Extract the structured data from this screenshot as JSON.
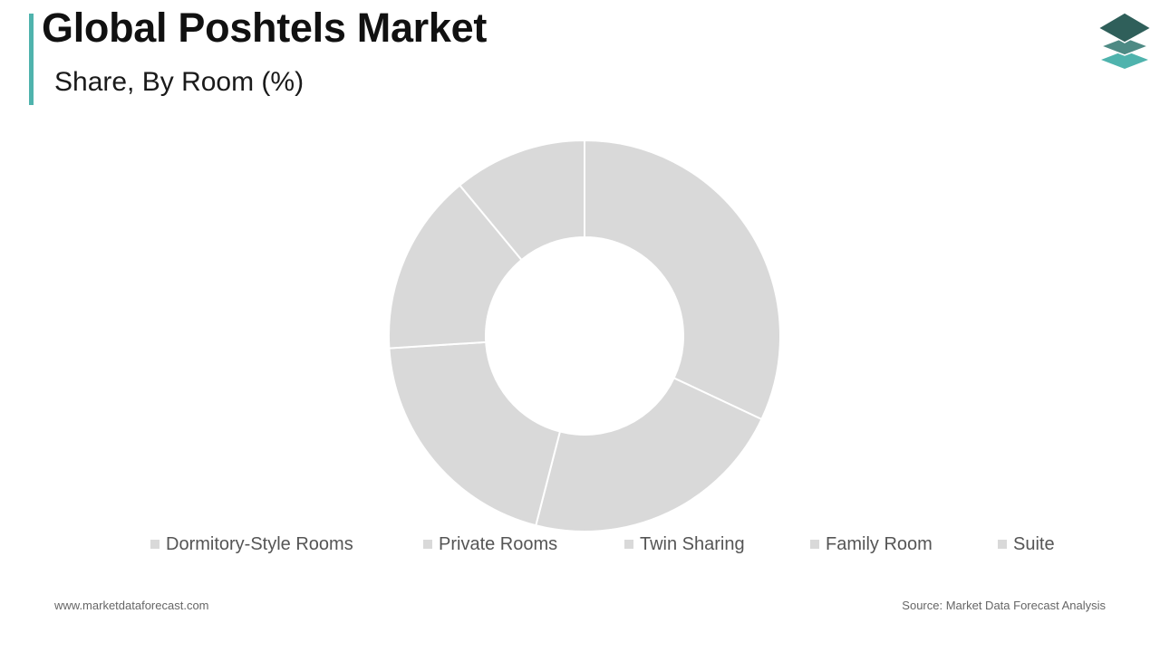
{
  "header": {
    "title": "Global Poshtels Market",
    "subtitle": "Share, By Room (%)"
  },
  "logo": {
    "icon": "stacked-layers-icon",
    "colors": [
      "#2f5f5a",
      "#4e8a84",
      "#4fb3ad"
    ]
  },
  "colors": {
    "accent": "#4fb3ad",
    "slice_fill": "#d9d9d9",
    "slice_stroke": "#ffffff"
  },
  "chart_data": {
    "type": "pie",
    "variant": "donut",
    "title": "",
    "categories": [
      "Dormitory-Style Rooms",
      "Private Rooms",
      "Twin Sharing",
      "Family Room",
      "Suite"
    ],
    "values": [
      32,
      22,
      20,
      15,
      11
    ],
    "legend_position": "bottom",
    "data_labels": false
  },
  "footer": {
    "website": "www.marketdataforecast.com",
    "source": "Source: Market Data Forecast Analysis"
  }
}
